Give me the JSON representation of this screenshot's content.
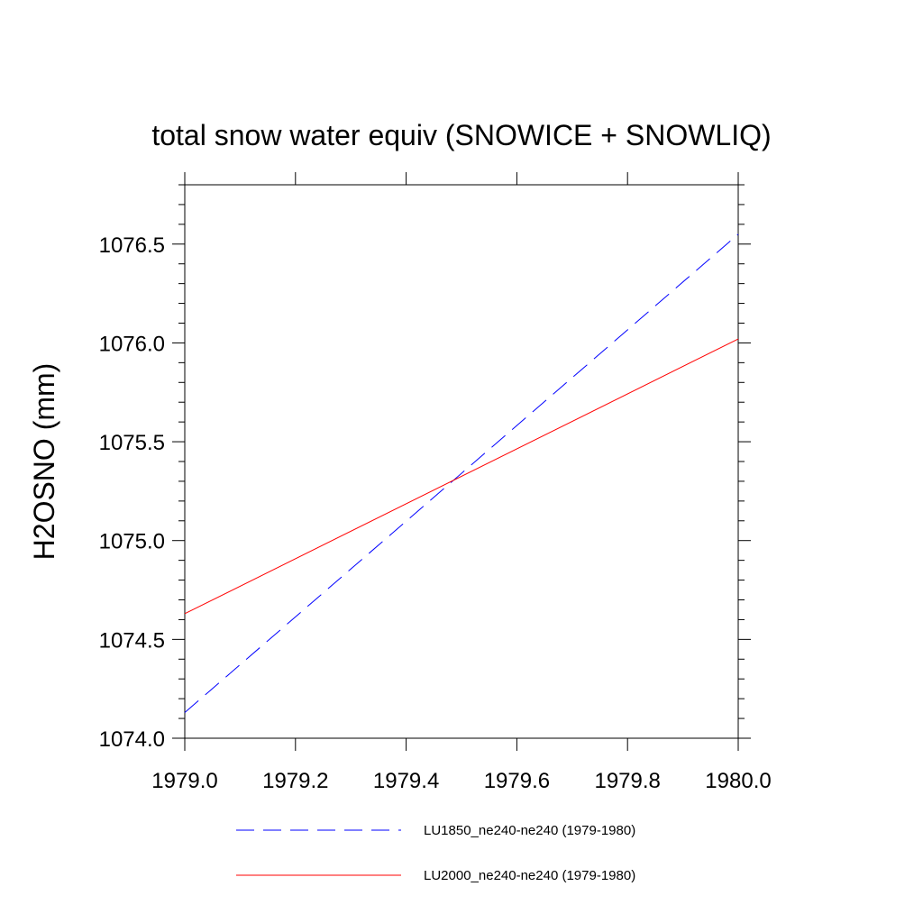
{
  "chart_data": {
    "type": "line",
    "title": "total snow water equiv (SNOWICE + SNOWLIQ)",
    "xlabel": "",
    "ylabel": "H2OSNO  (mm)",
    "xlim": [
      1979.0,
      1980.0
    ],
    "ylim": [
      1074.0,
      1076.8
    ],
    "xticks": [
      1979.0,
      1979.2,
      1979.4,
      1979.6,
      1979.8,
      1980.0
    ],
    "xtick_labels": [
      "1979.0",
      "1979.2",
      "1979.4",
      "1979.6",
      "1979.8",
      "1980.0"
    ],
    "yticks": [
      1074.0,
      1074.5,
      1075.0,
      1075.5,
      1076.0,
      1076.5
    ],
    "ytick_labels": [
      "1074.0",
      "1074.5",
      "1075.0",
      "1075.5",
      "1076.0",
      "1076.5"
    ],
    "grid": false,
    "legend_position": "bottom",
    "series": [
      {
        "name": "LU1850_ne240-ne240 (1979-1980)",
        "color": "#0000ff",
        "dash": "dashed",
        "x": [
          1979.0,
          1980.0
        ],
        "y": [
          1074.13,
          1076.55
        ]
      },
      {
        "name": "LU2000_ne240-ne240 (1979-1980)",
        "color": "#ff0000",
        "dash": "solid",
        "x": [
          1979.0,
          1980.0
        ],
        "y": [
          1074.63,
          1076.02
        ]
      }
    ]
  }
}
